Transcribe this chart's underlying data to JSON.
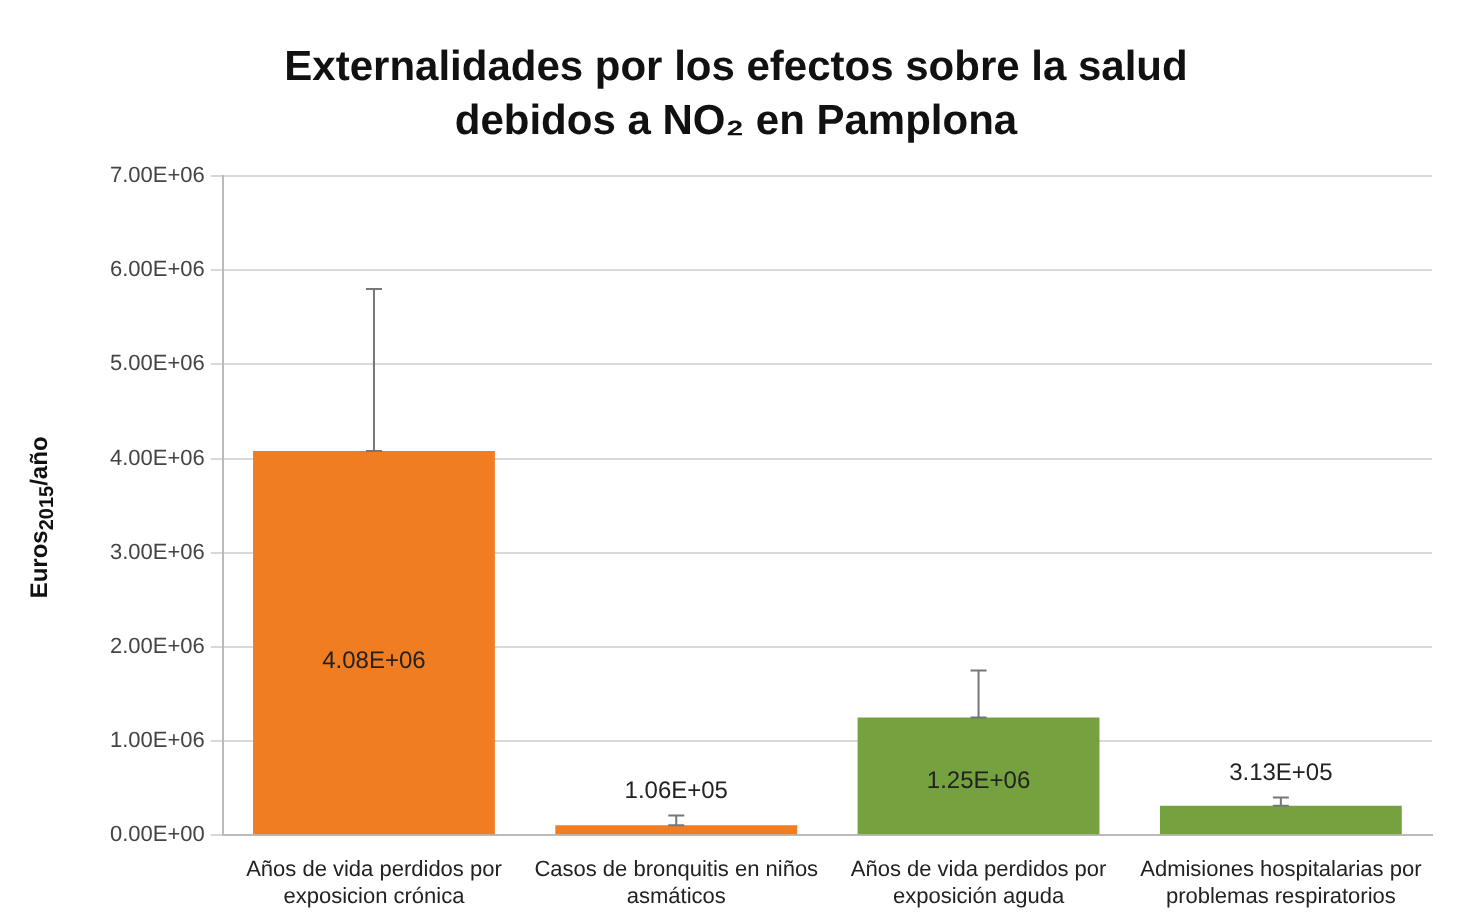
{
  "chart_data": {
    "type": "bar",
    "title": "Externalidades por los efectos sobre la salud debidos a NO₂ en Pamplona",
    "ylabel": "Euros$_{2015}$/año",
    "categories": [
      "Años de vida perdidos por exposicion crónica",
      "Casos de bronquitis en niños asmáticos",
      "Años de vida perdidos por exposición aguda",
      "Admisiones hospitalarias por problemas respiratorios"
    ],
    "values": [
      4080000,
      106000,
      1250000,
      313000
    ],
    "colors": [
      "#f07d22",
      "#f07d22",
      "#76a13f",
      "#76a13f"
    ],
    "errors": [
      [
        4080000,
        5800000
      ],
      [
        106000,
        210000
      ],
      [
        1250000,
        1750000
      ],
      [
        313000,
        400000
      ]
    ],
    "value_labels": [
      "4.08E+06",
      "1.06E+05",
      "1.25E+06",
      "3.13E+05"
    ],
    "ylim": [
      0,
      7000000
    ],
    "yticks": [
      {
        "value": 0,
        "label": "0.00E+00"
      },
      {
        "value": 1000000,
        "label": "1.00E+06"
      },
      {
        "value": 2000000,
        "label": "2.00E+06"
      },
      {
        "value": 3000000,
        "label": "3.00E+06"
      },
      {
        "value": 4000000,
        "label": "4.00E+06"
      },
      {
        "value": 5000000,
        "label": "5.00E+06"
      },
      {
        "value": 6000000,
        "label": "6.00E+06"
      },
      {
        "value": 7000000,
        "label": "7.00E+06"
      }
    ],
    "grid": "y",
    "legend": false
  }
}
